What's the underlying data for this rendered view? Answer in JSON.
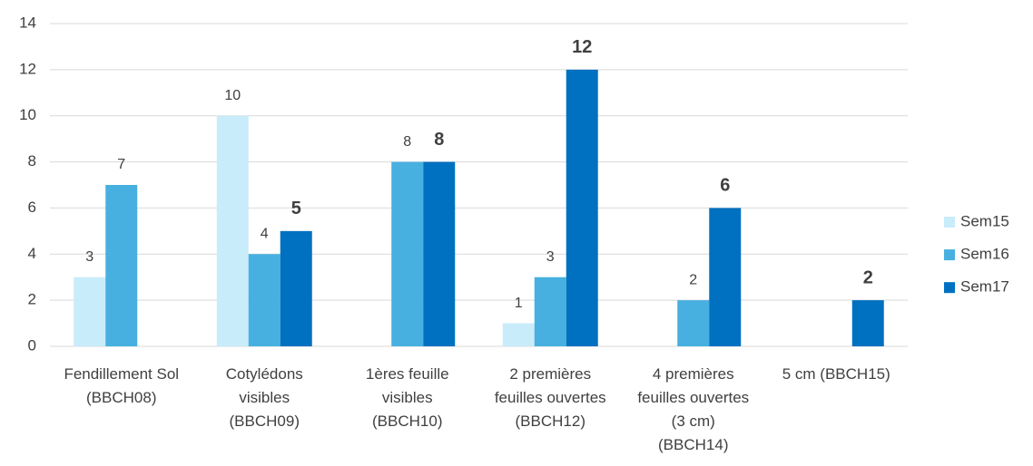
{
  "chart_data": {
    "type": "bar",
    "categories": [
      "Fendillement Sol (BBCH08)",
      "Cotylédons visibles (BBCH09)",
      "1ères feuille visibles (BBCH10)",
      "2 premières feuilles ouvertes (BBCH12)",
      "4 premières feuilles ouvertes (3 cm) (BBCH14)",
      "5 cm (BBCH15)"
    ],
    "series": [
      {
        "name": "Sem15",
        "color": "#c9ecfb",
        "values": [
          3,
          10,
          null,
          1,
          null,
          null
        ]
      },
      {
        "name": "Sem16",
        "color": "#47b0e0",
        "values": [
          7,
          4,
          8,
          3,
          2,
          null
        ]
      },
      {
        "name": "Sem17",
        "color": "#0070c0",
        "values": [
          null,
          5,
          8,
          12,
          6,
          2
        ]
      }
    ],
    "ylim": [
      0,
      14
    ],
    "yticks": [
      0,
      2,
      4,
      6,
      8,
      10,
      12,
      14
    ],
    "grid": true,
    "legend": "right"
  }
}
